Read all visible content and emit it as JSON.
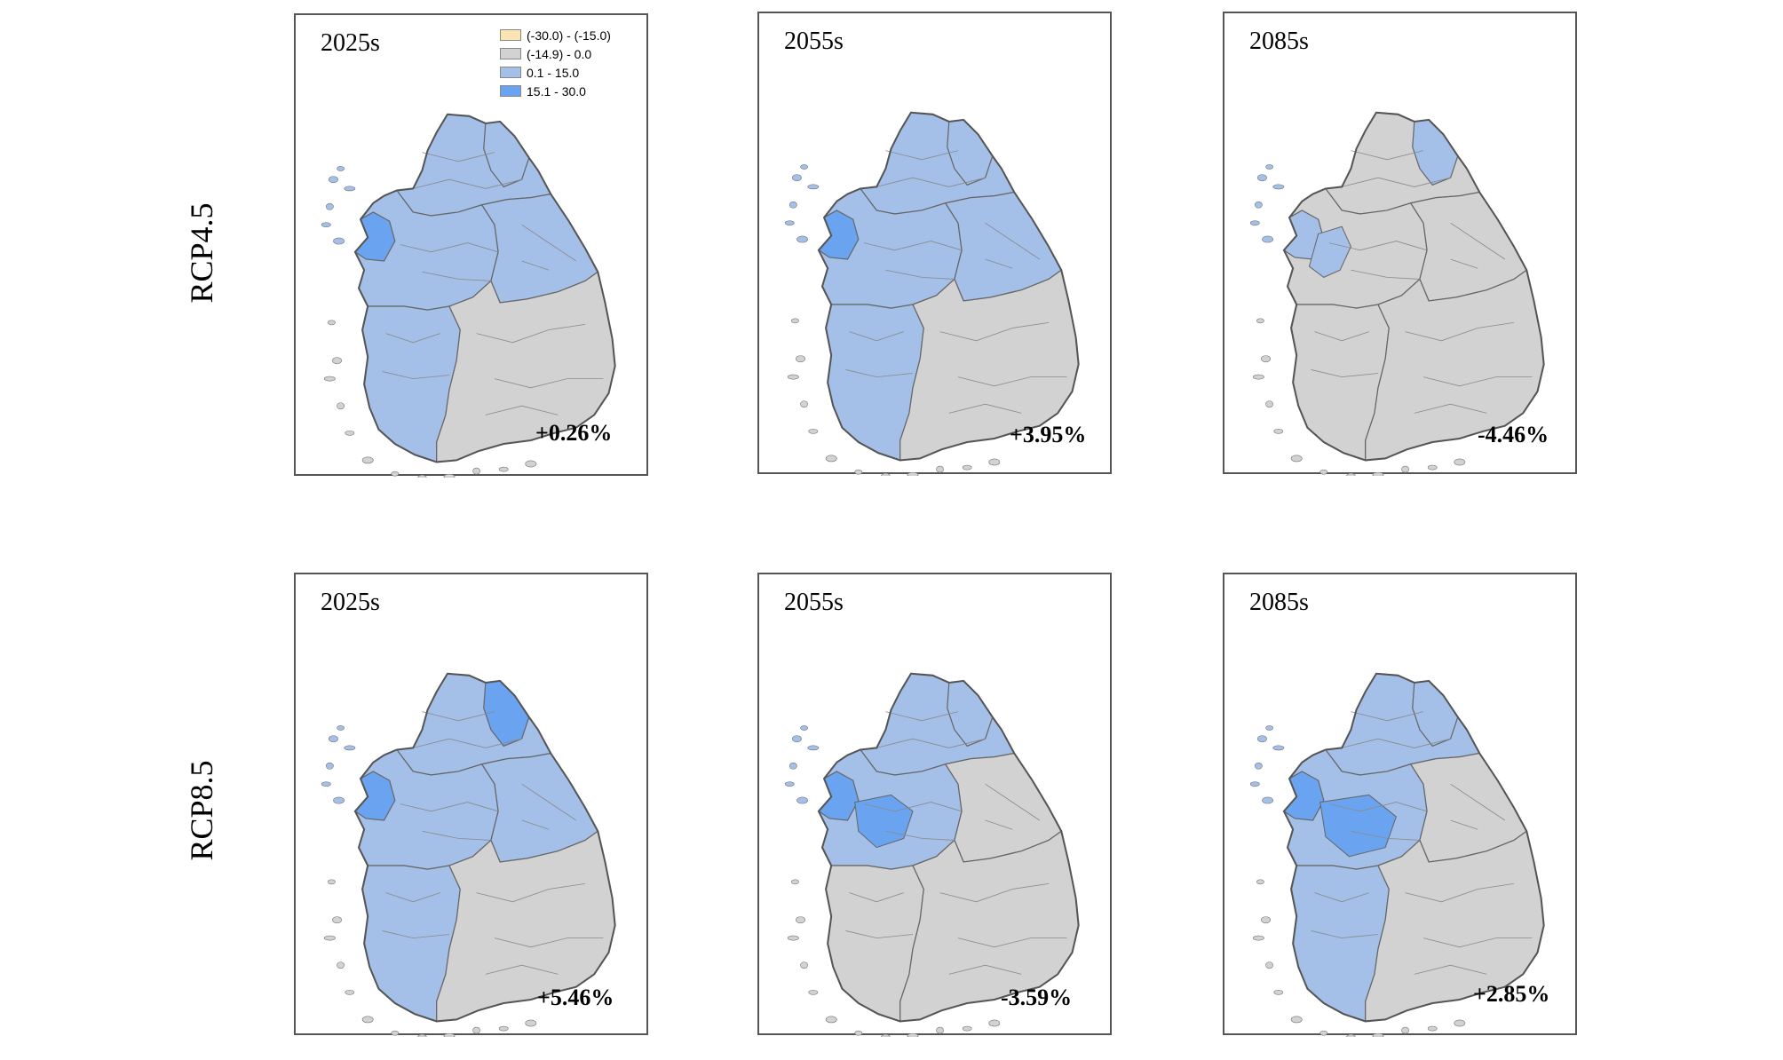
{
  "rows": [
    {
      "label": "RCP4.5",
      "panels": [
        {
          "period": "2025s",
          "change": "+0.26%"
        },
        {
          "period": "2055s",
          "change": "+3.95%"
        },
        {
          "period": "2085s",
          "change": "-4.46%"
        }
      ]
    },
    {
      "label": "RCP8.5",
      "panels": [
        {
          "period": "2025s",
          "change": "+5.46%"
        },
        {
          "period": "2055s",
          "change": "-3.59%"
        },
        {
          "period": "2085s",
          "change": "+2.85%"
        }
      ]
    }
  ],
  "legend": {
    "items": [
      {
        "label": "(-30.0) - (-15.0)",
        "color": "#fbe3b4"
      },
      {
        "label": "(-14.9) - 0.0",
        "color": "#d2d2d2"
      },
      {
        "label": "0.1 - 15.0",
        "color": "#a4bfe8"
      },
      {
        "label": "15.1 - 30.0",
        "color": "#6aa4f0"
      }
    ]
  },
  "colors": {
    "grey": "#d2d2d2",
    "light_blue": "#a4bfe8",
    "blue": "#6aa4f0",
    "boundary": "#666666"
  }
}
